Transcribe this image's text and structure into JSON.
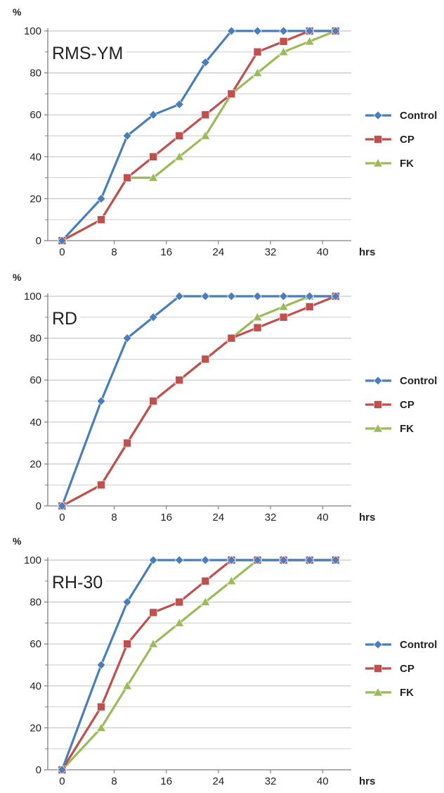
{
  "chart_data": [
    {
      "type": "line",
      "title": "RMS-YM",
      "ylabel": "%",
      "xlabel": "hrs",
      "ylim": [
        0,
        100
      ],
      "y_ticks": [
        "0",
        "20",
        "40",
        "60",
        "80",
        "100"
      ],
      "x_ticks": [
        "0",
        "8",
        "16",
        "24",
        "32",
        "40"
      ],
      "x": [
        0,
        6,
        10,
        14,
        18,
        22,
        26,
        30,
        34,
        38,
        42
      ],
      "series": [
        {
          "name": "Control",
          "color": "#4a7ebb",
          "marker": "diamond",
          "values": [
            0,
            20,
            50,
            60,
            65,
            85,
            100,
            100,
            100,
            100,
            100
          ]
        },
        {
          "name": "CP",
          "color": "#c0504d",
          "marker": "square",
          "values": [
            0,
            10,
            30,
            40,
            50,
            60,
            70,
            90,
            95,
            100,
            100
          ]
        },
        {
          "name": "FK",
          "color": "#9bbb59",
          "marker": "triangle",
          "values": [
            0,
            10,
            30,
            30,
            40,
            50,
            70,
            80,
            90,
            95,
            100
          ]
        }
      ],
      "grid": true,
      "legend": "right"
    },
    {
      "type": "line",
      "title": "RD",
      "ylabel": "%",
      "xlabel": "hrs",
      "ylim": [
        0,
        100
      ],
      "y_ticks": [
        "0",
        "20",
        "40",
        "60",
        "80",
        "100"
      ],
      "x_ticks": [
        "0",
        "8",
        "16",
        "24",
        "32",
        "40"
      ],
      "x": [
        0,
        6,
        10,
        14,
        18,
        22,
        26,
        30,
        34,
        38,
        42
      ],
      "series": [
        {
          "name": "Control",
          "color": "#4a7ebb",
          "marker": "diamond",
          "values": [
            0,
            50,
            80,
            90,
            100,
            100,
            100,
            100,
            100,
            100,
            100
          ]
        },
        {
          "name": "CP",
          "color": "#c0504d",
          "marker": "square",
          "values": [
            0,
            10,
            30,
            50,
            60,
            70,
            80,
            85,
            90,
            95,
            100
          ]
        },
        {
          "name": "FK",
          "color": "#9bbb59",
          "marker": "triangle",
          "values": [
            0,
            10,
            30,
            50,
            60,
            70,
            80,
            90,
            95,
            100,
            100
          ]
        }
      ],
      "grid": true,
      "legend": "right"
    },
    {
      "type": "line",
      "title": "RH-30",
      "ylabel": "%",
      "xlabel": "hrs",
      "ylim": [
        0,
        100
      ],
      "y_ticks": [
        "0",
        "20",
        "40",
        "60",
        "80",
        "100"
      ],
      "x_ticks": [
        "0",
        "8",
        "16",
        "24",
        "32",
        "40"
      ],
      "x": [
        0,
        6,
        10,
        14,
        18,
        22,
        26,
        30,
        34,
        38,
        42
      ],
      "series": [
        {
          "name": "Control",
          "color": "#4a7ebb",
          "marker": "diamond",
          "values": [
            0,
            50,
            80,
            100,
            100,
            100,
            100,
            100,
            100,
            100,
            100
          ]
        },
        {
          "name": "CP",
          "color": "#c0504d",
          "marker": "square",
          "values": [
            0,
            30,
            60,
            75,
            80,
            90,
            100,
            100,
            100,
            100,
            100
          ]
        },
        {
          "name": "FK",
          "color": "#9bbb59",
          "marker": "triangle",
          "values": [
            0,
            20,
            40,
            60,
            70,
            80,
            90,
            100,
            100,
            100,
            100
          ]
        }
      ],
      "grid": true,
      "legend": "right"
    }
  ]
}
